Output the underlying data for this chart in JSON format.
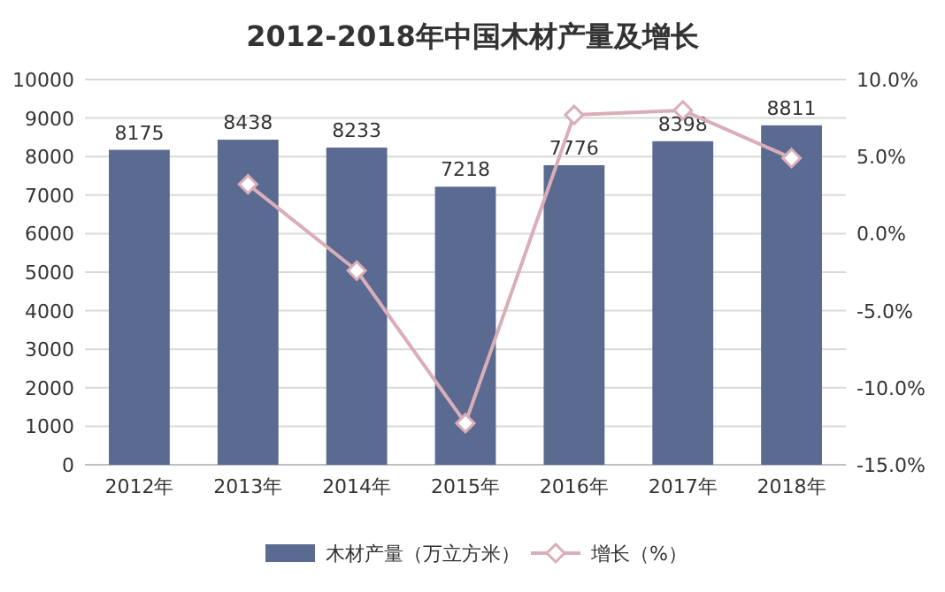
{
  "chart_data": {
    "type": "bar",
    "title": "2012-2018年中国木材产量及增长",
    "categories": [
      "2012年",
      "2013年",
      "2014年",
      "2015年",
      "2016年",
      "2017年",
      "2018年"
    ],
    "series": [
      {
        "name": "木材产量（万立方米）",
        "color": "#5b6a91",
        "values": [
          8175,
          8438,
          8233,
          7218,
          7776,
          8398,
          8811
        ],
        "data_labels": true
      },
      {
        "name": "增长（%）",
        "type": "line",
        "axis": "y2",
        "color": "#d9aeb9",
        "marker": "diamond",
        "values": [
          null,
          3.2,
          -2.4,
          -12.3,
          7.7,
          8.0,
          4.9
        ]
      }
    ],
    "ylim": [
      0,
      10000
    ],
    "yticks": [
      0,
      1000,
      2000,
      3000,
      4000,
      5000,
      6000,
      7000,
      8000,
      9000,
      10000
    ],
    "y2lim": [
      -15,
      10
    ],
    "y2ticks": [
      {
        "value": -15,
        "label": "-15.0%"
      },
      {
        "value": -10,
        "label": "-10.0%"
      },
      {
        "value": -5,
        "label": "-5.0%"
      },
      {
        "value": 0,
        "label": "0.0%"
      },
      {
        "value": 5,
        "label": "5.0%"
      },
      {
        "value": 10,
        "label": "10.0%"
      }
    ],
    "grid": "y",
    "legend": "bottom"
  }
}
